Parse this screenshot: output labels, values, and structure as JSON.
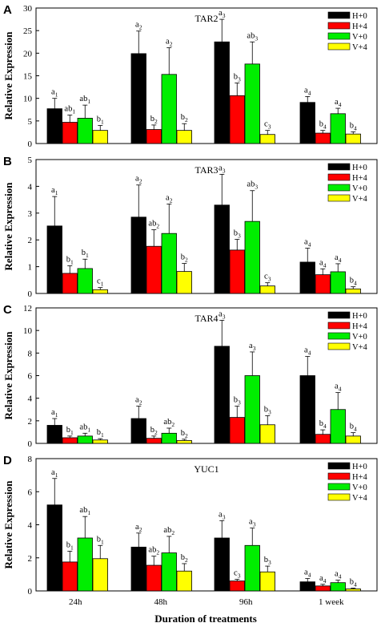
{
  "xlabel": "Duration of treatments",
  "chart_data": [
    {
      "type": "bar",
      "panel_label": "A",
      "title": "TAR2",
      "ylabel": "Relative Expression",
      "categories": [
        "24h",
        "48h",
        "96h",
        "1 week"
      ],
      "ylim": [
        0,
        30
      ],
      "yticks": [
        "0",
        "5",
        "10",
        "15",
        "20",
        "25",
        "30"
      ],
      "legend_position": "top-right",
      "series": [
        {
          "name": "H+0",
          "color": "#000000",
          "values": [
            7.7,
            19.9,
            22.5,
            9.1
          ],
          "errors": [
            2.3,
            5.0,
            5.0,
            1.3
          ],
          "labels": [
            "a1",
            "a2",
            "a3",
            "a4"
          ]
        },
        {
          "name": "H+4",
          "color": "#ff0000",
          "values": [
            4.7,
            3.1,
            10.6,
            2.3
          ],
          "errors": [
            1.6,
            1.0,
            2.8,
            0.6
          ],
          "labels": [
            "ab1",
            "b2",
            "b3",
            "b4"
          ]
        },
        {
          "name": "V+0",
          "color": "#00ee00",
          "values": [
            5.6,
            15.3,
            17.6,
            6.6
          ],
          "errors": [
            2.9,
            5.9,
            4.9,
            1.2
          ],
          "labels": [
            "ab1",
            "a2",
            "ab3",
            "a4"
          ]
        },
        {
          "name": "V+4",
          "color": "#ffff00",
          "values": [
            2.9,
            2.9,
            2.0,
            2.1
          ],
          "errors": [
            1.1,
            1.5,
            0.9,
            0.5
          ],
          "labels": [
            "b1",
            "b2",
            "c3",
            "b4"
          ]
        }
      ]
    },
    {
      "type": "bar",
      "panel_label": "B",
      "title": "TAR3",
      "ylabel": "Relative Expression",
      "categories": [
        "24h",
        "48h",
        "96h",
        "1 week"
      ],
      "ylim": [
        0,
        5
      ],
      "yticks": [
        "0",
        "1",
        "2",
        "3",
        "4",
        "5"
      ],
      "legend_position": "top-right",
      "series": [
        {
          "name": "H+0",
          "color": "#000000",
          "values": [
            2.52,
            2.85,
            3.3,
            1.17
          ],
          "errors": [
            1.1,
            1.2,
            1.15,
            0.52
          ],
          "labels": [
            "a1",
            "a2",
            "a3",
            "a4"
          ]
        },
        {
          "name": "H+4",
          "color": "#ff0000",
          "values": [
            0.75,
            1.76,
            1.62,
            0.7
          ],
          "errors": [
            0.28,
            0.62,
            0.4,
            0.22
          ],
          "labels": [
            "b1",
            "ab2",
            "b3",
            "a4"
          ]
        },
        {
          "name": "V+0",
          "color": "#00ee00",
          "values": [
            0.93,
            2.24,
            2.69,
            0.81
          ],
          "errors": [
            0.35,
            1.1,
            1.15,
            0.3
          ],
          "labels": [
            "b1",
            "a2",
            "ab3",
            "a4"
          ]
        },
        {
          "name": "V+4",
          "color": "#ffff00",
          "values": [
            0.14,
            0.82,
            0.28,
            0.17
          ],
          "errors": [
            0.08,
            0.3,
            0.12,
            0.08
          ],
          "labels": [
            "c1",
            "b2",
            "c3",
            "b4"
          ]
        }
      ]
    },
    {
      "type": "bar",
      "panel_label": "C",
      "title": "TAR4",
      "ylabel": "Relative Expression",
      "categories": [
        "24h",
        "48h",
        "96h",
        "1 week"
      ],
      "ylim": [
        0,
        12
      ],
      "yticks": [
        "0",
        "2",
        "4",
        "6",
        "8",
        "10",
        "12"
      ],
      "legend_position": "top-right",
      "series": [
        {
          "name": "H+0",
          "color": "#000000",
          "values": [
            1.6,
            2.2,
            8.6,
            6.0
          ],
          "errors": [
            0.6,
            1.1,
            2.3,
            1.7
          ],
          "labels": [
            "a1",
            "a2",
            "a3",
            "a4"
          ]
        },
        {
          "name": "H+4",
          "color": "#ff0000",
          "values": [
            0.5,
            0.45,
            2.3,
            0.8
          ],
          "errors": [
            0.15,
            0.2,
            1.0,
            0.4
          ],
          "labels": [
            "b1",
            "b2",
            "b3",
            "b4"
          ]
        },
        {
          "name": "V+0",
          "color": "#00ee00",
          "values": [
            0.65,
            0.9,
            6.0,
            3.0
          ],
          "errors": [
            0.25,
            0.45,
            2.1,
            1.5
          ],
          "labels": [
            "ab1",
            "ab2",
            "a3",
            "a4"
          ]
        },
        {
          "name": "V+4",
          "color": "#ffff00",
          "values": [
            0.3,
            0.25,
            1.65,
            0.65
          ],
          "errors": [
            0.12,
            0.12,
            0.8,
            0.3
          ],
          "labels": [
            "b1",
            "b2",
            "b3",
            "b4"
          ]
        }
      ]
    },
    {
      "type": "bar",
      "panel_label": "D",
      "title": "YUC1",
      "ylabel": "Relative Expression",
      "categories": [
        "24h",
        "48h",
        "96h",
        "1 week"
      ],
      "ylim": [
        0,
        8
      ],
      "yticks": [
        "0",
        "2",
        "4",
        "6",
        "8"
      ],
      "legend_position": "top-right",
      "series": [
        {
          "name": "H+0",
          "color": "#000000",
          "values": [
            5.2,
            2.65,
            3.2,
            0.55
          ],
          "errors": [
            1.6,
            0.85,
            1.05,
            0.2
          ],
          "labels": [
            "a1",
            "a2",
            "a3",
            "a4"
          ]
        },
        {
          "name": "H+4",
          "color": "#ff0000",
          "values": [
            1.75,
            1.55,
            0.6,
            0.3
          ],
          "errors": [
            0.65,
            0.55,
            0.1,
            0.1
          ],
          "labels": [
            "b1",
            "ab2",
            "c3",
            "a4"
          ]
        },
        {
          "name": "V+0",
          "color": "#00ee00",
          "values": [
            3.2,
            2.3,
            2.75,
            0.5
          ],
          "errors": [
            1.3,
            1.0,
            1.05,
            0.15
          ],
          "labels": [
            "ab1",
            "ab2",
            "a3",
            "a4"
          ]
        },
        {
          "name": "V+4",
          "color": "#ffff00",
          "values": [
            1.95,
            1.2,
            1.15,
            0.12
          ],
          "errors": [
            0.8,
            0.45,
            0.35,
            0.05
          ],
          "labels": [
            "b1",
            "b2",
            "b3",
            "b4"
          ]
        }
      ]
    }
  ]
}
